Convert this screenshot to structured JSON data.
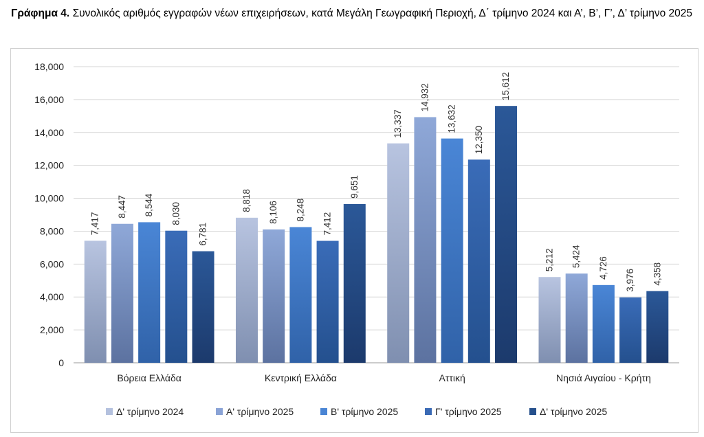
{
  "caption": {
    "label": "Γράφημα 4.",
    "text": "Συνολικός αριθμός εγγραφών νέων επιχειρήσεων, κατά Μεγάλη Γεωγραφική Περιοχή, Δ΄ τρίμηνο 2024 και Α’, Β’, Γ’, Δ’ τρίμηνο 2025"
  },
  "chart_data": {
    "type": "bar",
    "title": "Συνολικός αριθμός εγγραφών νέων επιχειρήσεων, κατά Μεγάλη Γεωγραφική Περιοχή, Δ΄ τρίμηνο 2024 και Α’, Β’, Γ’, Δ’ τρίμηνο 2025",
    "categories": [
      "Βόρεια Ελλάδα",
      "Κεντρική Ελλάδα",
      "Αττική",
      "Νησιά Αιγαίου - Κρήτη"
    ],
    "series": [
      {
        "name": "Δ' τρίμηνο 2024",
        "values": [
          7417,
          8818,
          13337,
          5212
        ],
        "color_top": "#b8c4e0",
        "color_bottom": "#7f8fb0",
        "legend_color": "#b4c1de"
      },
      {
        "name": "Α' τρίμηνο 2025",
        "values": [
          8447,
          8106,
          14932,
          5424
        ],
        "color_top": "#8fa8d8",
        "color_bottom": "#5c72a0",
        "legend_color": "#8aa3d6"
      },
      {
        "name": "Β' τρίμηνο 2025",
        "values": [
          8544,
          8248,
          13632,
          4726
        ],
        "color_top": "#4a86d6",
        "color_bottom": "#3062a8",
        "legend_color": "#4a85d4"
      },
      {
        "name": "Γ' τρίμηνο 2025",
        "values": [
          8030,
          7412,
          12350,
          3976
        ],
        "color_top": "#3a6cb8",
        "color_bottom": "#24508e",
        "legend_color": "#3a6ab5"
      },
      {
        "name": "Δ' τρίμηνο 2025",
        "values": [
          6781,
          9651,
          15612,
          4358
        ],
        "color_top": "#2b5898",
        "color_bottom": "#1c3a6c",
        "legend_color": "#26508c"
      }
    ],
    "ylim": [
      0,
      18000
    ],
    "yticks": [
      0,
      2000,
      4000,
      6000,
      8000,
      10000,
      12000,
      14000,
      16000,
      18000
    ],
    "ytick_labels": [
      "0",
      "2,000",
      "4,000",
      "6,000",
      "8,000",
      "10,000",
      "12,000",
      "14,000",
      "16,000",
      "18,000"
    ],
    "xlabel": "",
    "ylabel": "",
    "grid": true,
    "legend_position": "bottom"
  }
}
